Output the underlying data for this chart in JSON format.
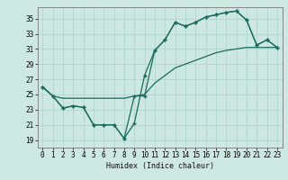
{
  "xlabel": "Humidex (Indice chaleur)",
  "background_color": "#cde8e0",
  "grid_color": "#b0d8ce",
  "line_color": "#1a6b5a",
  "xlim": [
    -0.5,
    23.5
  ],
  "ylim": [
    18.0,
    36.5
  ],
  "yticks": [
    19,
    21,
    23,
    25,
    27,
    29,
    31,
    33,
    35
  ],
  "xticks": [
    0,
    1,
    2,
    3,
    4,
    5,
    6,
    7,
    8,
    9,
    10,
    11,
    12,
    13,
    14,
    15,
    16,
    17,
    18,
    19,
    20,
    21,
    22,
    23
  ],
  "series1_x": [
    0,
    1,
    2,
    3,
    4,
    5,
    6,
    7,
    8,
    9,
    10,
    11,
    12,
    13,
    14,
    15,
    16,
    17,
    18,
    19,
    20,
    21,
    22,
    23
  ],
  "series1_y": [
    26.0,
    24.8,
    23.2,
    23.5,
    23.3,
    21.0,
    21.0,
    21.0,
    19.2,
    21.2,
    27.5,
    30.8,
    32.2,
    34.5,
    34.0,
    34.5,
    35.2,
    35.5,
    35.8,
    36.0,
    34.8,
    31.5,
    32.2,
    31.2
  ],
  "series2_x": [
    0,
    1,
    2,
    3,
    4,
    5,
    6,
    7,
    8,
    9,
    10,
    11,
    12,
    13,
    14,
    15,
    16,
    17,
    18,
    19,
    20,
    21,
    22,
    23
  ],
  "series2_y": [
    26.0,
    24.8,
    23.2,
    23.5,
    23.3,
    21.0,
    21.0,
    21.0,
    19.2,
    24.8,
    24.8,
    30.8,
    32.2,
    34.5,
    34.0,
    34.5,
    35.2,
    35.5,
    35.8,
    36.0,
    34.8,
    31.5,
    32.2,
    31.2
  ],
  "series3_x": [
    0,
    1,
    2,
    3,
    4,
    5,
    6,
    7,
    8,
    9,
    10,
    11,
    12,
    13,
    14,
    15,
    16,
    17,
    18,
    19,
    20,
    21,
    22,
    23
  ],
  "series3_y": [
    26.0,
    24.8,
    24.5,
    24.5,
    24.5,
    24.5,
    24.5,
    24.5,
    24.5,
    24.8,
    25.0,
    26.5,
    27.5,
    28.5,
    29.0,
    29.5,
    30.0,
    30.5,
    30.8,
    31.0,
    31.2,
    31.2,
    31.2,
    31.2
  ],
  "xlabel_fontsize": 6,
  "tick_fontsize": 5.5
}
